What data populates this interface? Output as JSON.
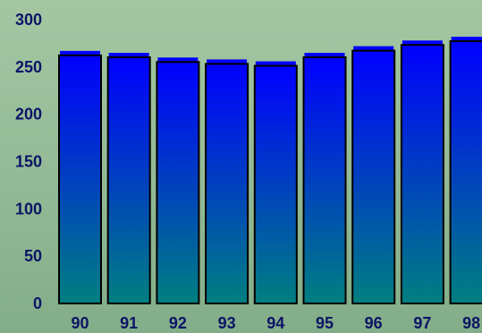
{
  "chart_data": {
    "type": "bar",
    "title": "",
    "xlabel": "",
    "ylabel": "",
    "categories": [
      "90",
      "91",
      "92",
      "93",
      "94",
      "95",
      "96",
      "97",
      "98"
    ],
    "values": [
      267,
      265,
      260,
      258,
      256,
      265,
      272,
      278,
      282
    ],
    "ylim": [
      0,
      300
    ],
    "yticks": [
      "0",
      "50",
      "100",
      "150",
      "200",
      "250",
      "300"
    ],
    "grid": false,
    "legend": "none",
    "colors": {
      "bar_top": "#0000ff",
      "bar_bottom": "#008080",
      "bar_outline": "#000000",
      "tick_label": "#0c1466"
    }
  }
}
